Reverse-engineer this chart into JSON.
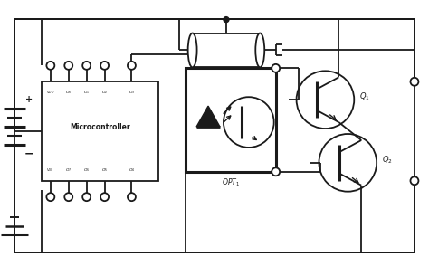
{
  "bg_color": "#ffffff",
  "line_color": "#1a1a1a",
  "lw": 1.3,
  "fig_width": 4.74,
  "fig_height": 2.95
}
